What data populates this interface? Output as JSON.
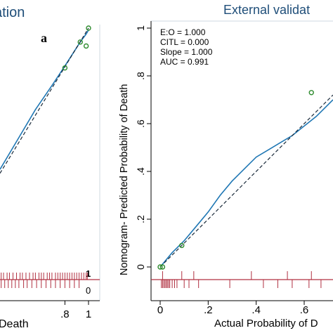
{
  "chart_data": [
    {
      "type": "line",
      "title": "ation",
      "panel_label": "a",
      "xlabel": "Death",
      "x_ticks": [
        {
          "value": 0.8,
          "label": ".8"
        },
        {
          "value": 1.0,
          "label": "1"
        }
      ],
      "xlim": [
        0.25,
        1.0
      ],
      "ylim": [
        -0.25,
        1.0
      ],
      "rug_labels": [
        "1",
        "0"
      ],
      "series": [
        {
          "kind": "fitted",
          "color": "#1f77b4",
          "points": [
            [
              0.25,
              0.29
            ],
            [
              0.4,
              0.44
            ],
            [
              0.55,
              0.59
            ],
            [
              0.7,
              0.72
            ],
            [
              0.8,
              0.81
            ],
            [
              0.93,
              0.93
            ],
            [
              0.98,
              0.97
            ],
            [
              1.0,
              0.99
            ]
          ]
        },
        {
          "kind": "reference",
          "color": "#1a2a3a",
          "points": [
            [
              0.25,
              0.27
            ],
            [
              1.0,
              1.0
            ]
          ]
        },
        {
          "kind": "observed",
          "color": "#2e8b2e",
          "points": [
            [
              0.8,
              0.8
            ],
            [
              0.93,
              0.93
            ],
            [
              0.98,
              0.91
            ],
            [
              1.0,
              1.0
            ]
          ]
        }
      ],
      "rug_events": [
        0.26,
        0.28,
        0.31,
        0.33,
        0.36,
        0.39,
        0.42,
        0.44,
        0.47,
        0.5,
        0.53,
        0.55,
        0.58,
        0.6,
        0.62,
        0.65,
        0.67,
        0.69,
        0.72,
        0.74,
        0.76,
        0.78,
        0.8,
        0.82,
        0.84,
        0.86,
        0.88,
        0.9,
        0.92,
        0.94,
        0.96,
        0.98,
        0.99
      ],
      "rug_nonevents": [
        0.26,
        0.29,
        0.32,
        0.35,
        0.38,
        0.41,
        0.45,
        0.48,
        0.52,
        0.56,
        0.6,
        0.64,
        0.68,
        0.72,
        0.76,
        0.8,
        0.84,
        0.88,
        0.92
      ]
    },
    {
      "type": "line",
      "title": "External validat",
      "xlabel": "Actual Probability of D",
      "ylabel": "Nomogram- Predicted Probability of Death",
      "xlim": [
        0,
        0.72
      ],
      "ylim": [
        0,
        1
      ],
      "x_ticks": [
        {
          "value": 0,
          "label": "0"
        },
        {
          "value": 0.2,
          "label": ".2"
        },
        {
          "value": 0.4,
          "label": ".4"
        },
        {
          "value": 0.6,
          "label": ".6"
        }
      ],
      "y_ticks": [
        {
          "value": 0,
          "label": "0"
        },
        {
          "value": 0.2,
          "label": ".2"
        },
        {
          "value": 0.4,
          "label": ".4"
        },
        {
          "value": 0.6,
          "label": ".6"
        },
        {
          "value": 0.8,
          "label": ".8"
        },
        {
          "value": 1.0,
          "label": "1"
        }
      ],
      "stats": [
        "E:O = 1.000",
        "CITL = 0.000",
        "Slope = 1.000",
        "AUC = 0.991"
      ],
      "series": [
        {
          "kind": "fitted",
          "color": "#1f77b4",
          "points": [
            [
              0,
              0
            ],
            [
              0.05,
              0.06
            ],
            [
              0.1,
              0.11
            ],
            [
              0.15,
              0.17
            ],
            [
              0.2,
              0.23
            ],
            [
              0.25,
              0.3
            ],
            [
              0.3,
              0.36
            ],
            [
              0.35,
              0.41
            ],
            [
              0.4,
              0.46
            ],
            [
              0.45,
              0.49
            ],
            [
              0.5,
              0.52
            ],
            [
              0.55,
              0.55
            ],
            [
              0.6,
              0.59
            ],
            [
              0.65,
              0.63
            ],
            [
              0.7,
              0.68
            ],
            [
              0.72,
              0.7
            ]
          ]
        },
        {
          "kind": "reference",
          "color": "#1a2a3a",
          "points": [
            [
              0,
              0
            ],
            [
              0.72,
              0.72
            ]
          ]
        },
        {
          "kind": "observed",
          "color": "#2e8b2e",
          "points": [
            [
              0.0,
              0.0
            ],
            [
              0.01,
              0.0
            ],
            [
              0.09,
              0.09
            ],
            [
              0.63,
              0.73
            ]
          ]
        }
      ],
      "rug_events": [
        0.01,
        0.09,
        0.14,
        0.38,
        0.53,
        0.63
      ],
      "rug_nonevents": [
        0.005,
        0.01,
        0.015,
        0.02,
        0.025,
        0.03,
        0.035,
        0.04,
        0.05,
        0.06,
        0.07,
        0.1,
        0.12,
        0.16,
        0.29,
        0.43,
        0.49,
        0.55,
        0.62,
        0.67
      ]
    }
  ]
}
